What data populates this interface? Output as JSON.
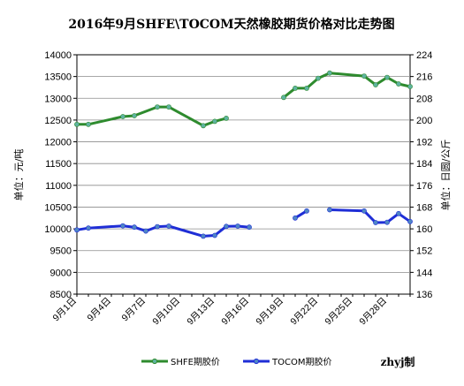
{
  "chart_data": {
    "type": "line",
    "title": "2016年9月SHFE\\TOCOM天然橡胶期货价格对比走势图",
    "ylabel_left": "单位：元/吨",
    "ylabel_right": "单位：日圆/公斤",
    "ylim_left": [
      8500,
      14000
    ],
    "ylim_right": [
      136,
      224
    ],
    "yticks_left": [
      "14000",
      "13500",
      "13000",
      "12500",
      "12000",
      "11500",
      "11000",
      "10500",
      "10000",
      "9500",
      "9000",
      "8500"
    ],
    "yticks_right": [
      "224",
      "216",
      "208",
      "200",
      "192",
      "184",
      "176",
      "168",
      "160",
      "152",
      "144",
      "136"
    ],
    "x_days": [
      1,
      30
    ],
    "x_tick_days": [
      1,
      4,
      7,
      10,
      13,
      16,
      19,
      22,
      25,
      28
    ],
    "x_tick_labels": [
      "9月1日",
      "9月4日",
      "9月7日",
      "9月10日",
      "9月13日",
      "9月16日",
      "9月19日",
      "9月22日",
      "9月25日",
      "9月28日"
    ],
    "grid": "horizontal",
    "legend_position": "bottom",
    "credit": "zhyj制",
    "series": [
      {
        "name": "SHFE期胶价",
        "axis": "left",
        "color": "#2e8b2e",
        "marker_color": "#5fb3a0",
        "segments": [
          [
            [
              1,
              12400
            ],
            [
              2,
              12400
            ],
            [
              5,
              12580
            ],
            [
              6,
              12600
            ],
            [
              8,
              12800
            ],
            [
              9,
              12800
            ],
            [
              12,
              12370
            ],
            [
              13,
              12470
            ],
            [
              14,
              12540
            ]
          ],
          [
            [
              19,
              13020
            ],
            [
              20,
              13230
            ],
            [
              21,
              13230
            ],
            [
              22,
              13460
            ],
            [
              23,
              13580
            ],
            [
              26,
              13510
            ],
            [
              27,
              13310
            ],
            [
              28,
              13480
            ],
            [
              29,
              13330
            ],
            [
              30,
              13270
            ]
          ]
        ]
      },
      {
        "name": "TOCOM期胶价",
        "axis": "right",
        "color": "#1f2ed6",
        "marker_color": "#4f86c6",
        "segments": [
          [
            [
              1,
              159.6
            ],
            [
              2,
              160.3
            ],
            [
              5,
              161.1
            ],
            [
              6,
              160.6
            ],
            [
              7,
              159.2
            ],
            [
              8,
              160.8
            ],
            [
              9,
              161.0
            ],
            [
              12,
              157.3
            ],
            [
              13,
              157.6
            ],
            [
              14,
              160.9
            ],
            [
              15,
              161.0
            ],
            [
              16,
              160.6
            ]
          ],
          [
            [
              20,
              164.0
            ],
            [
              21,
              166.6
            ]
          ],
          [
            [
              23,
              167.0
            ],
            [
              26,
              166.6
            ],
            [
              27,
              162.3
            ],
            [
              28,
              162.4
            ],
            [
              29,
              165.6
            ],
            [
              30,
              162.7
            ]
          ]
        ]
      }
    ]
  }
}
